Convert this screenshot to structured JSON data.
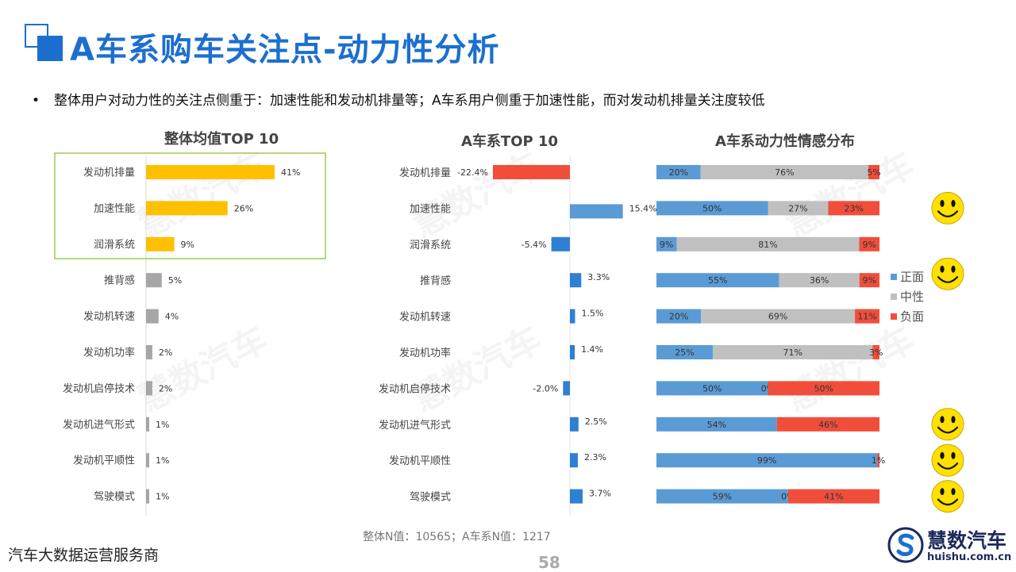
{
  "title": "A车系购车关注点-动力性分析",
  "bullet": "整体用户对动力性的关注点侧重于：加速性能和发动机排量等；A车系用户侧重于加速性能，而对发动机排量关注度较低",
  "footer": {
    "n_values": "整体N值：10565；A车系N值：1217",
    "page": "58",
    "company": "汽车大数据运营服务商",
    "brand": "慧数汽车",
    "domain": "huishu.com.cn"
  },
  "watermark": "慧数汽车",
  "colors": {
    "title": "#1c6fcf",
    "highlight_bar": "#ffc000",
    "gray_bar": "#a6a6a6",
    "negative": "#f04e3b",
    "positive": "#2f7fd3",
    "pos_seg": "#5b9bd5",
    "neu_seg": "#c0c0c0",
    "neg_seg": "#f04e3b",
    "highlight_box": "#92d050"
  },
  "legend": [
    {
      "label": "正面",
      "color": "#5b9bd5"
    },
    {
      "label": "中性",
      "color": "#c0c0c0"
    },
    {
      "label": "负面",
      "color": "#f04e3b"
    }
  ],
  "smiley_rows": [
    1,
    3,
    7,
    8,
    9
  ],
  "chart_data": [
    {
      "type": "bar",
      "title": "整体均值TOP 10",
      "categories": [
        "发动机排量",
        "加速性能",
        "润滑系统",
        "推背感",
        "发动机转速",
        "发动机功率",
        "发动机启停技术",
        "发动机进气形式",
        "发动机平顺性",
        "驾驶模式"
      ],
      "values": [
        41,
        26,
        9,
        5,
        4,
        2,
        2,
        1,
        1,
        1
      ],
      "labels": [
        "41%",
        "26%",
        "9%",
        "5%",
        "4%",
        "2%",
        "2%",
        "1%",
        "1%",
        "1%"
      ],
      "highlighted": [
        0,
        1,
        2
      ]
    },
    {
      "type": "bar",
      "title": "A车系TOP 10",
      "categories": [
        "发动机排量",
        "加速性能",
        "润滑系统",
        "推背感",
        "发动机转速",
        "发动机功率",
        "发动机启停技术",
        "发动机进气形式",
        "发动机平顺性",
        "驾驶模式"
      ],
      "values": [
        -22.4,
        15.4,
        -5.4,
        3.3,
        1.5,
        1.4,
        -2.0,
        2.5,
        2.3,
        3.7
      ],
      "labels": [
        "-22.4%",
        "15.4%",
        "-5.4%",
        "3.3%",
        "1.5%",
        "1.4%",
        "-2.0%",
        "2.5%",
        "2.3%",
        "3.7%"
      ]
    },
    {
      "type": "bar",
      "title": "A车系动力性情感分布",
      "categories": [
        "发动机排量",
        "加速性能",
        "润滑系统",
        "推背感",
        "发动机转速",
        "发动机功率",
        "发动机启停技术",
        "发动机进气形式",
        "发动机平顺性",
        "驾驶模式"
      ],
      "series": [
        {
          "name": "正面",
          "values": [
            20,
            50,
            9,
            55,
            20,
            25,
            50,
            54,
            99,
            59
          ],
          "labels": [
            "20%",
            "50%",
            "9%",
            "55%",
            "20%",
            "25%",
            "50%",
            "54%",
            "99%",
            "59%"
          ]
        },
        {
          "name": "中性",
          "values": [
            76,
            27,
            81,
            36,
            69,
            71,
            0,
            0,
            0,
            0
          ],
          "labels": [
            "76%",
            "27%",
            "81%",
            "36%",
            "69%",
            "71%",
            "0%",
            "",
            "",
            "0%"
          ]
        },
        {
          "name": "负面",
          "values": [
            5,
            23,
            9,
            9,
            11,
            3,
            50,
            46,
            1,
            41
          ],
          "labels": [
            "5%",
            "23%",
            "9%",
            "9%",
            "11%",
            "3%",
            "50%",
            "46%",
            "1%",
            "41%"
          ]
        }
      ]
    }
  ]
}
